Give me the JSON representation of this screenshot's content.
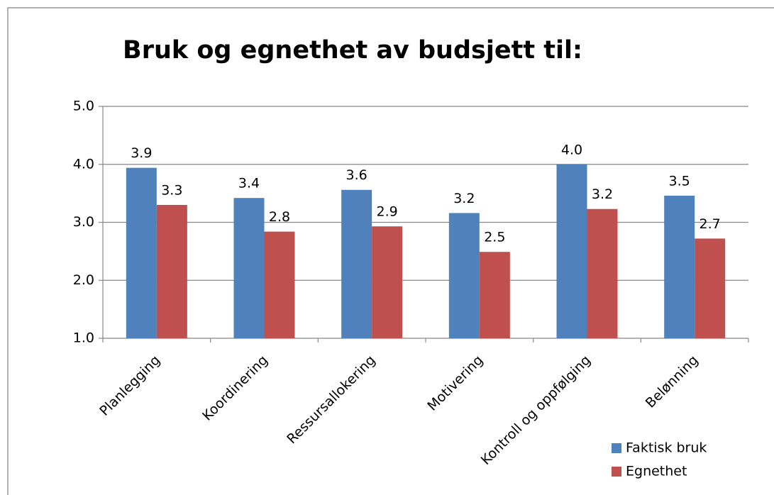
{
  "chart_data": {
    "type": "bar",
    "title": "Bruk og egnethet av budsjett til:",
    "categories": [
      "Planlegging",
      "Koordinering",
      "Ressursallokering",
      "Motivering",
      "Kontroll og oppfølging",
      "Belønning"
    ],
    "series": [
      {
        "name": "Faktisk bruk",
        "color": "#4f81bd",
        "values": [
          3.94,
          3.42,
          3.56,
          3.16,
          4.0,
          3.46
        ],
        "value_labels": [
          "3.9",
          "3.4",
          "3.6",
          "3.2",
          "4.0",
          "3.5"
        ]
      },
      {
        "name": "Egnethet",
        "color": "#c0504d",
        "values": [
          3.3,
          2.84,
          2.93,
          2.49,
          3.23,
          2.72
        ],
        "value_labels": [
          "3.3",
          "2.8",
          "2.9",
          "2.5",
          "3.2",
          "2.7"
        ]
      }
    ],
    "ylim": [
      1,
      5
    ],
    "yticks": [
      {
        "value": 1,
        "label": "1.0"
      },
      {
        "value": 2,
        "label": "2.0"
      },
      {
        "value": 3,
        "label": "3.0"
      },
      {
        "value": 4,
        "label": "4.0"
      },
      {
        "value": 5,
        "label": "5.0"
      }
    ],
    "grid": true,
    "legend": "bottom-right"
  }
}
